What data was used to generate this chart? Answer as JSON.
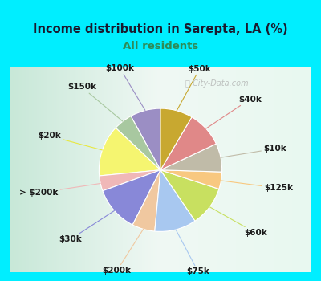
{
  "title": "Income distribution in Sarepta, LA (%)",
  "subtitle": "All residents",
  "title_color": "#1a1a2e",
  "subtitle_color": "#2e8b57",
  "background_cyan": "#00eeff",
  "watermark": "City-Data.com",
  "labels": [
    "$100k",
    "$150k",
    "$20k",
    "> $200k",
    "$30k",
    "$200k",
    "$75k",
    "$60k",
    "$125k",
    "$10k",
    "$40k",
    "$50k"
  ],
  "values": [
    8.0,
    5.0,
    13.5,
    4.0,
    12.0,
    6.0,
    11.0,
    10.5,
    4.5,
    7.5,
    9.5,
    8.5
  ],
  "colors": [
    "#9b8ec4",
    "#a8c8a0",
    "#f5f570",
    "#f0b8b8",
    "#8888d8",
    "#f0c8a0",
    "#a8c8f0",
    "#c8e060",
    "#f8c880",
    "#c0bba8",
    "#e08888",
    "#c8a830"
  ],
  "line_colors": [
    "#9b8ec4",
    "#a8c8a0",
    "#e8e840",
    "#f0b8b8",
    "#8888d8",
    "#f0c8a0",
    "#a8c8f0",
    "#c8e060",
    "#f8c880",
    "#c0bba8",
    "#e08888",
    "#c8a830"
  ],
  "startangle": 90,
  "label_fontsize": 7.5
}
